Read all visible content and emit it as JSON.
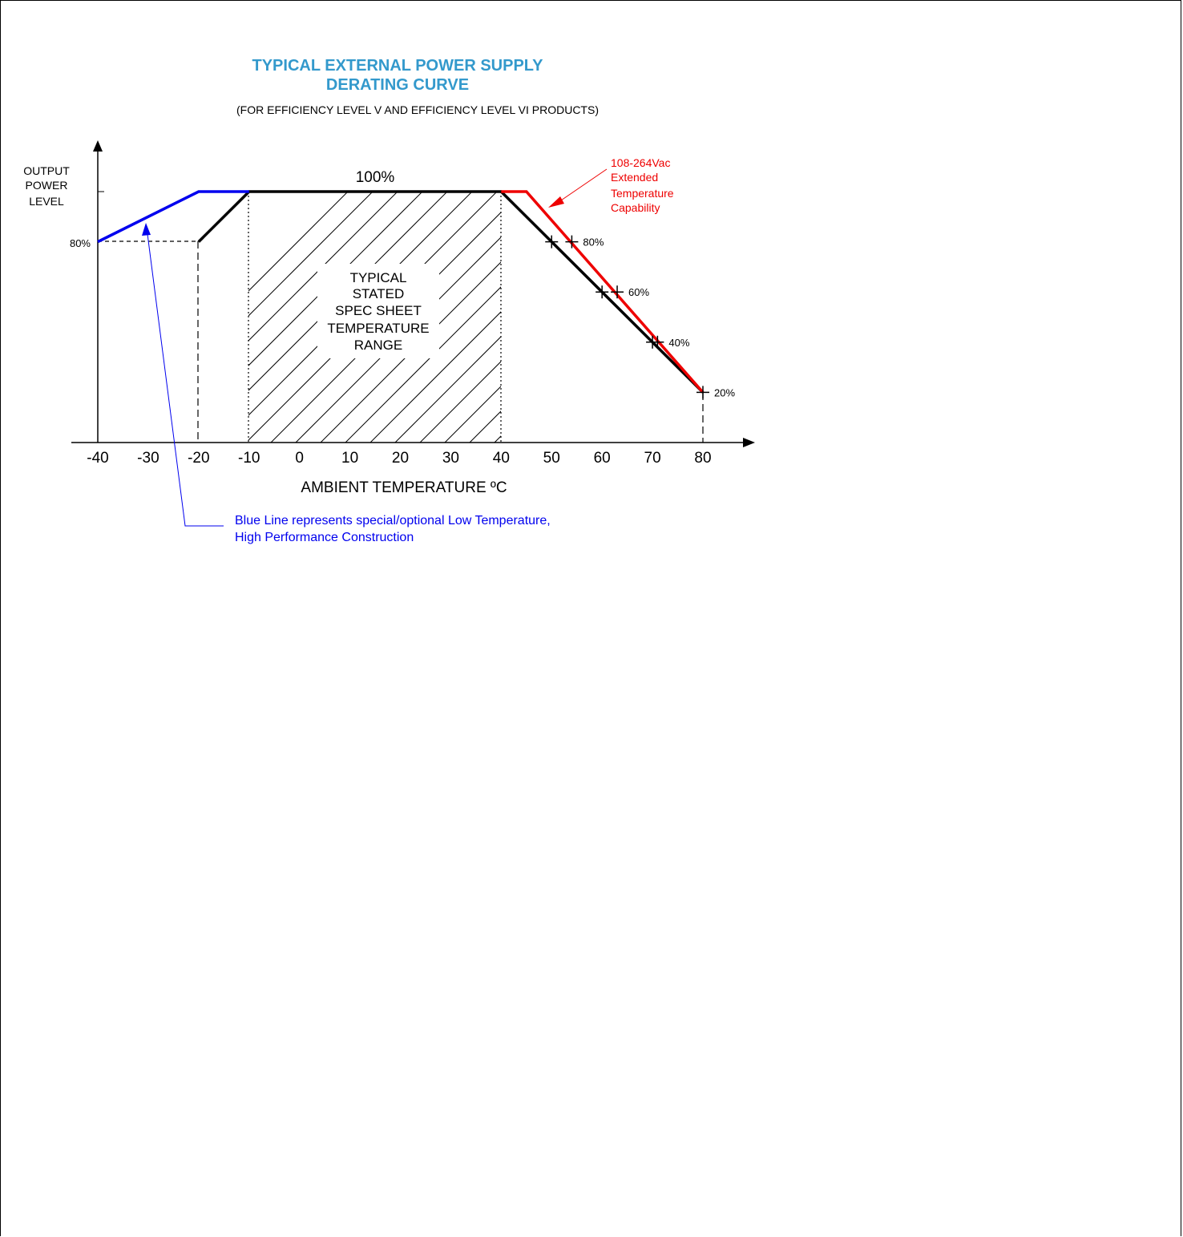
{
  "chart_data": {
    "type": "line",
    "title_lines": [
      "TYPICAL EXTERNAL POWER SUPPLY",
      "DERATING CURVE"
    ],
    "subtitle": "(FOR EFFICIENCY LEVEL V AND EFFICIENCY LEVEL VI PRODUCTS)",
    "ylabel_lines": [
      "OUTPUT",
      "POWER",
      "LEVEL"
    ],
    "xlabel": "AMBIENT TEMPERATURE ºC",
    "xlim": [
      -40,
      80
    ],
    "ylim": [
      0,
      100
    ],
    "x_ticks": [
      -40,
      -30,
      -20,
      -10,
      0,
      10,
      20,
      30,
      40,
      50,
      60,
      70,
      80
    ],
    "x_tick_labels": [
      "-40",
      "-30",
      "-20",
      "-10",
      "0",
      "10",
      "20",
      "30",
      "40",
      "50",
      "60",
      "70",
      "80"
    ],
    "y_tick_label_80": "80%",
    "top_label": "100%",
    "colors": {
      "blue": "#0000ee",
      "red": "#ee0000",
      "black": "#000000",
      "title": "#3399cc"
    },
    "series": [
      {
        "color": "#000000",
        "points": [
          [
            -20,
            80
          ],
          [
            -10,
            100
          ],
          [
            40,
            100
          ],
          [
            80,
            20
          ]
        ]
      },
      {
        "color": "#ee0000",
        "points": [
          [
            40,
            100
          ],
          [
            45,
            100
          ],
          [
            80,
            20
          ]
        ]
      },
      {
        "color": "#0000ee",
        "points": [
          [
            -40,
            80
          ],
          [
            -20,
            100
          ],
          [
            -10,
            100
          ]
        ]
      }
    ],
    "markers": {
      "black": [
        [
          50,
          80
        ],
        [
          60,
          60
        ],
        [
          70,
          40
        ],
        [
          80,
          20
        ]
      ],
      "red": [
        [
          54,
          80
        ],
        [
          63,
          60
        ],
        [
          71,
          40
        ]
      ]
    },
    "point_labels": [
      {
        "x": 54,
        "y": 80,
        "text": "80%"
      },
      {
        "x": 63,
        "y": 60,
        "text": "60%"
      },
      {
        "x": 71,
        "y": 40,
        "text": "40%"
      },
      {
        "x": 80,
        "y": 20,
        "text": "20%"
      }
    ],
    "shaded_region": {
      "x_range": [
        -10,
        40
      ],
      "text_lines": [
        "TYPICAL",
        "STATED",
        "SPEC SHEET",
        "TEMPERATURE",
        "RANGE"
      ]
    },
    "annotations": {
      "red_lines": [
        "108-264Vac",
        "Extended",
        "Temperature",
        "Capability"
      ],
      "blue_lines": [
        "Blue Line represents special/optional Low Temperature,",
        "High Performance Construction"
      ]
    }
  }
}
